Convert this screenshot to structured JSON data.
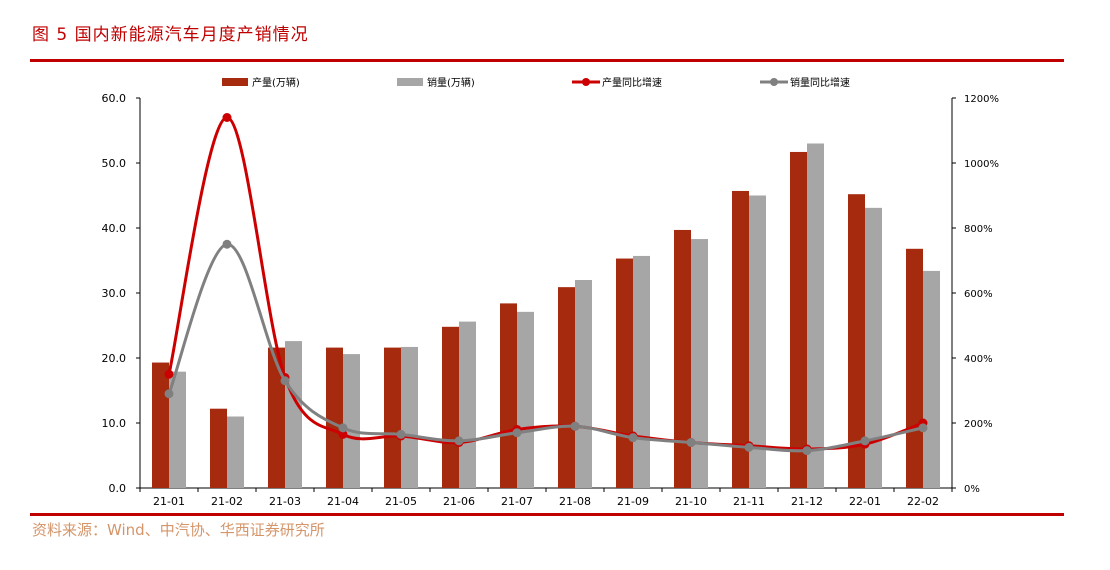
{
  "header": {
    "title": "图 5 国内新能源汽车月度产销情况"
  },
  "footer": {
    "source": "资料来源：Wind、中汽协、华西证券研究所"
  },
  "chart_data": {
    "type": "bar",
    "categories": [
      "21-01",
      "21-02",
      "21-03",
      "21-04",
      "21-05",
      "21-06",
      "21-07",
      "21-08",
      "21-09",
      "21-10",
      "21-11",
      "21-12",
      "22-01",
      "22-02"
    ],
    "series": [
      {
        "name": "产量(万辆)",
        "kind": "bar",
        "axis": "left",
        "color": "#A52A0E",
        "values": [
          19.3,
          12.2,
          21.6,
          21.6,
          21.6,
          24.8,
          28.4,
          30.9,
          35.3,
          39.7,
          45.7,
          51.7,
          45.2,
          36.8
        ]
      },
      {
        "name": "销量(万辆)",
        "kind": "bar",
        "axis": "left",
        "color": "#A6A6A6",
        "values": [
          17.9,
          11.0,
          22.6,
          20.6,
          21.7,
          25.6,
          27.1,
          32.0,
          35.7,
          38.3,
          45.0,
          53.0,
          43.1,
          33.4
        ]
      },
      {
        "name": "产量同比增速",
        "kind": "line",
        "axis": "right",
        "color": "#CC0000",
        "values": [
          350,
          1140,
          340,
          165,
          160,
          140,
          180,
          190,
          160,
          140,
          130,
          120,
          135,
          200
        ]
      },
      {
        "name": "销量同比增速",
        "kind": "line",
        "axis": "right",
        "color": "#808080",
        "values": [
          290,
          750,
          330,
          185,
          165,
          145,
          170,
          190,
          155,
          140,
          125,
          115,
          145,
          185
        ]
      }
    ],
    "y_left": {
      "min": 0,
      "max": 60,
      "ticks": [
        "0.0",
        "10.0",
        "20.0",
        "30.0",
        "40.0",
        "50.0",
        "60.0"
      ]
    },
    "y_right": {
      "min": 0,
      "max": 1200,
      "ticks": [
        "0%",
        "200%",
        "400%",
        "600%",
        "800%",
        "1000%",
        "1200%"
      ]
    },
    "grid": false,
    "legend_position": "top"
  }
}
